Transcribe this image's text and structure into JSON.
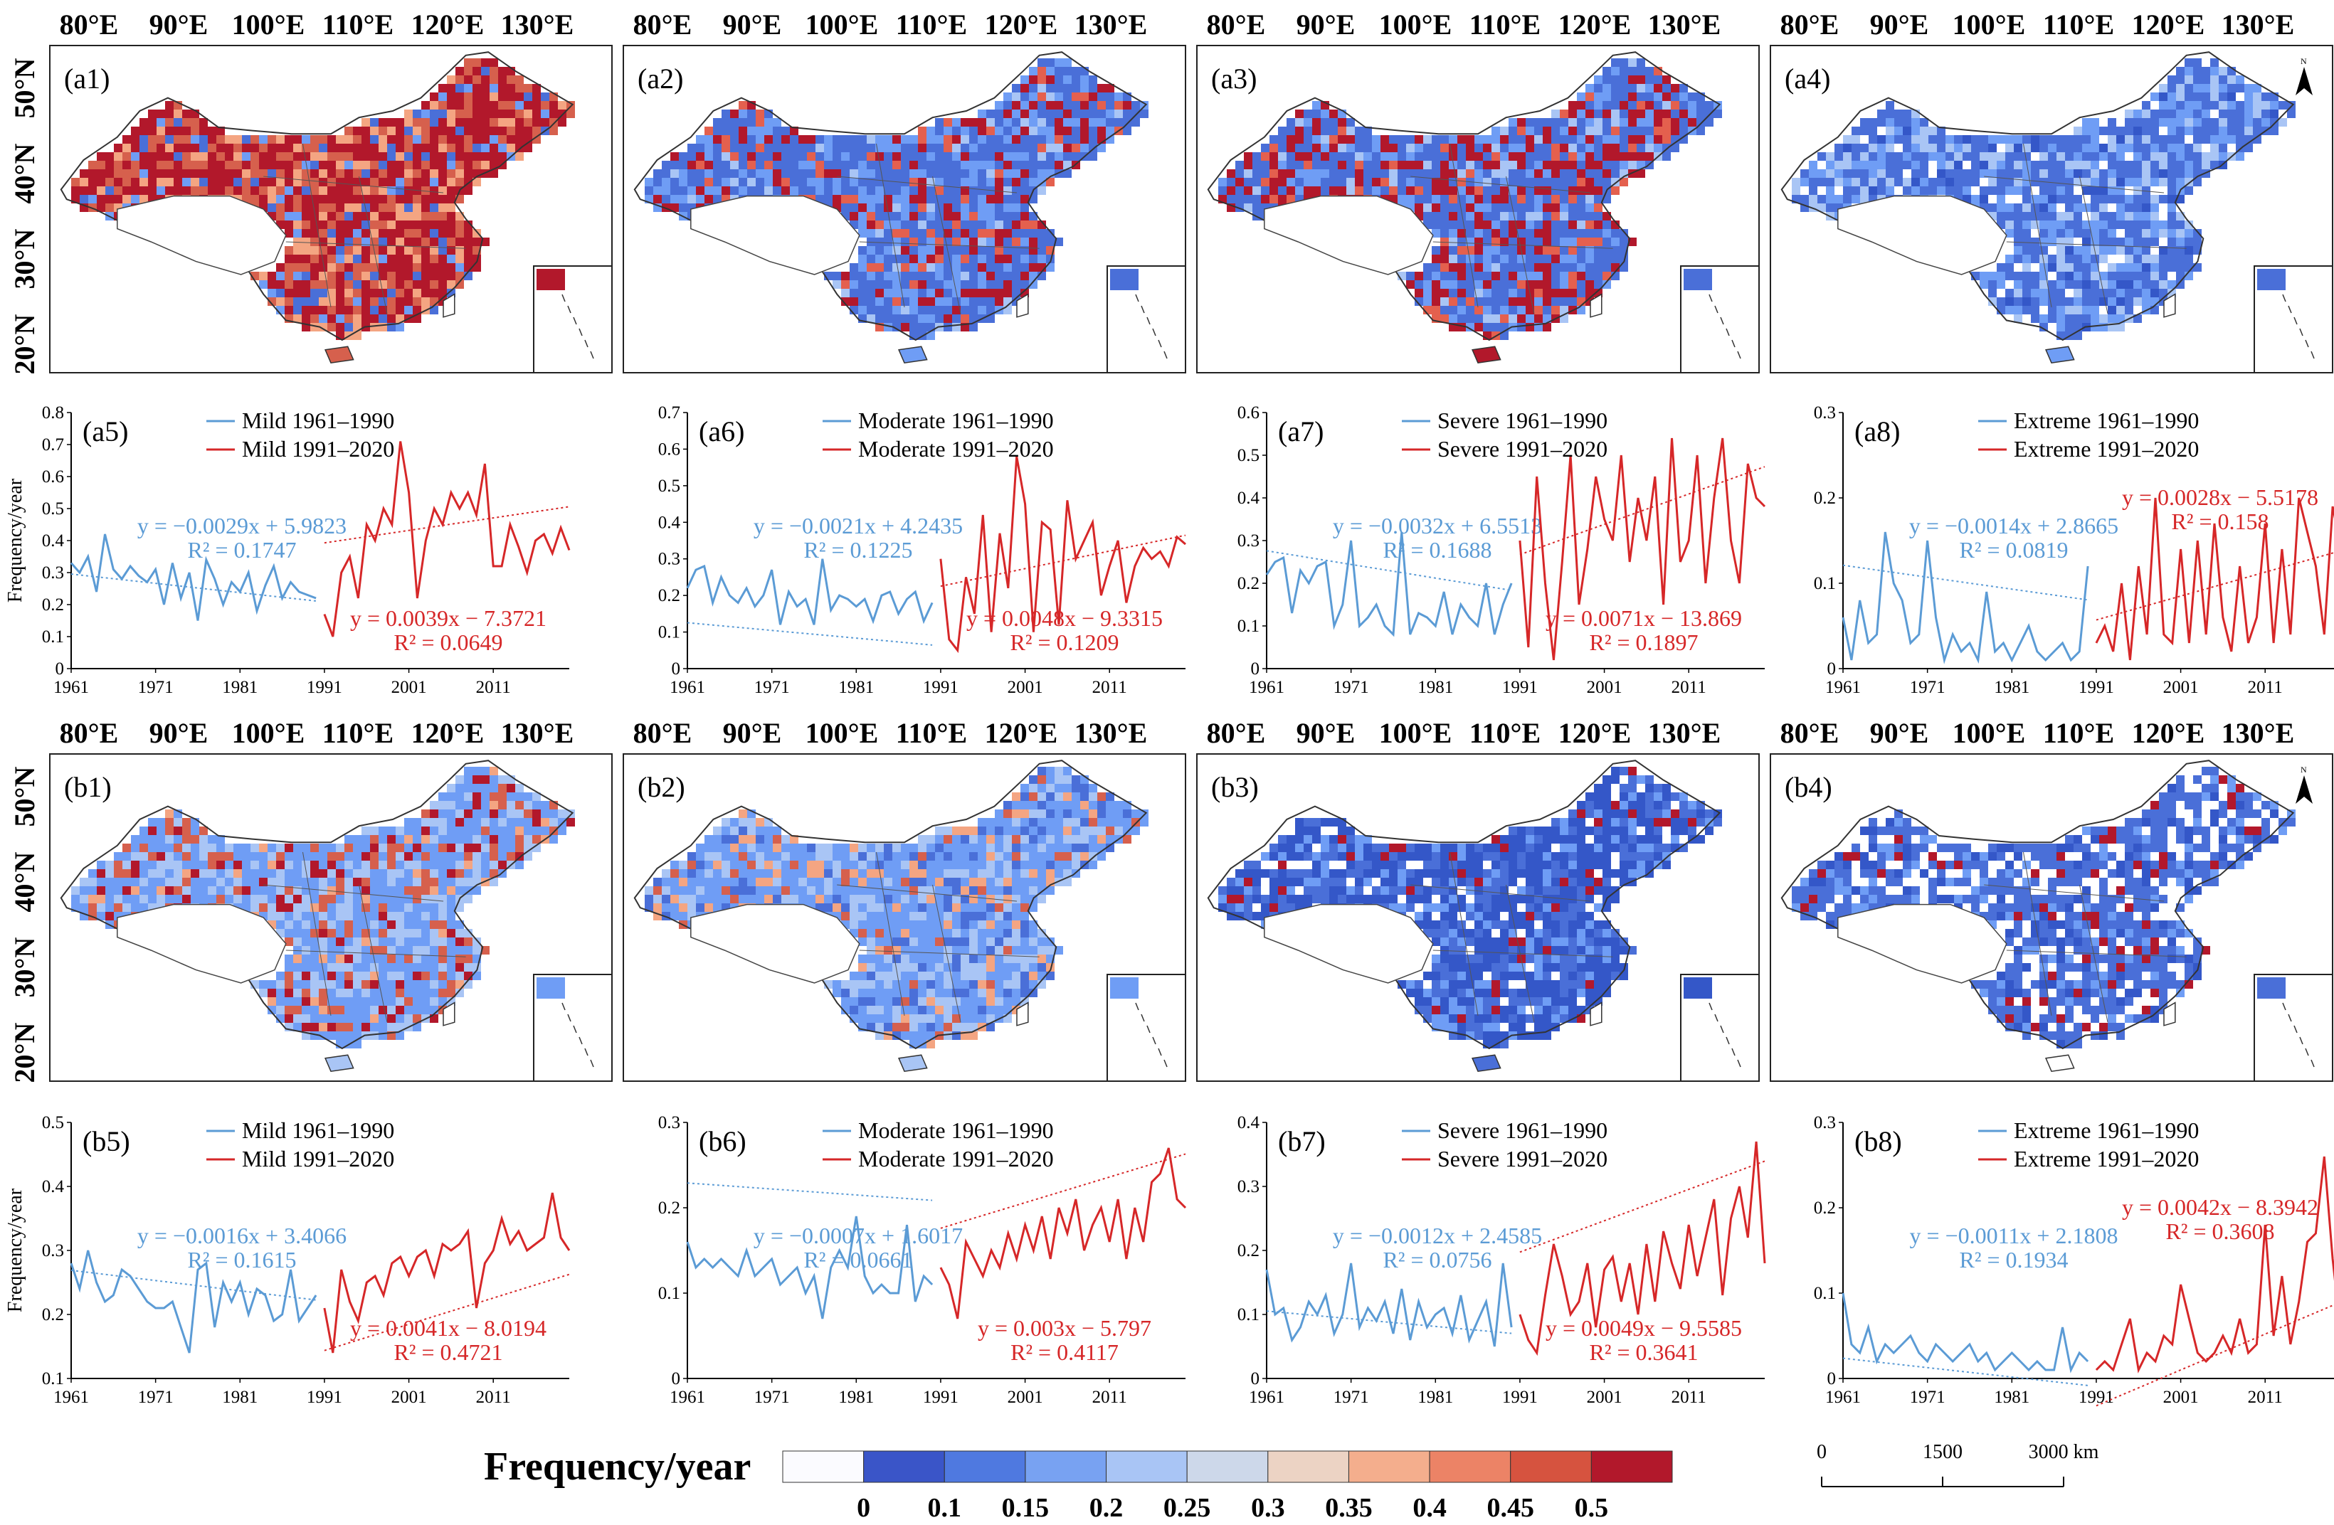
{
  "figure": {
    "lon_ticks": [
      "80°E",
      "90°E",
      "100°E",
      "110°E",
      "120°E",
      "130°E"
    ],
    "lat_ticks": [
      "50°N",
      "40°N",
      "30°N",
      "20°N"
    ],
    "north_symbol": "N"
  },
  "maps": [
    {
      "label": "(a1)",
      "level": "Mild",
      "period": "1961–1990 vs 1991–2020",
      "dominant": "high",
      "colors": [
        "#b2182b",
        "#d6604d",
        "#f4a582",
        "#4a6fd8",
        "#6f9df5"
      ]
    },
    {
      "label": "(a2)",
      "level": "Moderate",
      "period": "1961–1990 vs 1991–2020",
      "dominant": "mixed",
      "colors": [
        "#4a6fd8",
        "#6f9df5",
        "#b2182b",
        "#e4604e",
        "#a9c5f5"
      ]
    },
    {
      "label": "(a3)",
      "level": "Severe",
      "period": "1961–1990 vs 1991–2020",
      "dominant": "mixed",
      "colors": [
        "#4a6fd8",
        "#b2182b",
        "#6f9df5",
        "#e4604e",
        "#a9c5f5"
      ]
    },
    {
      "label": "(a4)",
      "level": "Extreme",
      "period": "1961–1990 vs 1991–2020",
      "dominant": "low",
      "colors": [
        "#4a6fd8",
        "#6f9df5",
        "#a9c5f5",
        "#ffffff",
        "#3457c8"
      ]
    },
    {
      "label": "(b1)",
      "level": "Mild",
      "period": "1961–1990 vs 1991–2020",
      "dominant": "mixed",
      "colors": [
        "#6f9df5",
        "#a9c5f5",
        "#d6604d",
        "#b2182b",
        "#f4a582"
      ]
    },
    {
      "label": "(b2)",
      "level": "Moderate",
      "period": "1961–1990 vs 1991–2020",
      "dominant": "low",
      "colors": [
        "#6f9df5",
        "#a9c5f5",
        "#4a6fd8",
        "#f4a582",
        "#d6604d"
      ]
    },
    {
      "label": "(b3)",
      "level": "Severe",
      "period": "1961–1990 vs 1991–2020",
      "dominant": "low",
      "colors": [
        "#3457c8",
        "#4a6fd8",
        "#6f9df5",
        "#ffffff",
        "#b2182b"
      ]
    },
    {
      "label": "(b4)",
      "level": "Extreme",
      "period": "1961–1990 vs 1991–2020",
      "dominant": "low",
      "colors": [
        "#4a6fd8",
        "#ffffff",
        "#3457c8",
        "#6f9df5",
        "#b2182b"
      ]
    }
  ],
  "chart_data": [
    {
      "type": "line",
      "label": "(a5)",
      "ylabel": "Frequency/year",
      "ylim": [
        0,
        0.8
      ],
      "yticks": [
        0,
        0.1,
        0.2,
        0.3,
        0.4,
        0.5,
        0.6,
        0.7,
        0.8
      ],
      "xlim": [
        1961,
        2020
      ],
      "xticks": [
        1961,
        1971,
        1981,
        1991,
        2001,
        2011
      ],
      "series": [
        {
          "name": "Mild 1961–1990",
          "color": "#5b9bd5",
          "x_start": 1961,
          "values": [
            0.33,
            0.3,
            0.35,
            0.24,
            0.42,
            0.31,
            0.28,
            0.32,
            0.29,
            0.27,
            0.31,
            0.2,
            0.33,
            0.22,
            0.3,
            0.15,
            0.34,
            0.28,
            0.2,
            0.27,
            0.24,
            0.3,
            0.18,
            0.26,
            0.32,
            0.22,
            0.27,
            0.24,
            0.23,
            0.22
          ],
          "trend": {
            "slope": -0.0029,
            "intercept": 5.9823
          },
          "eq": "y = −0.0029x + 5.9823",
          "r2": "R² = 0.1747"
        },
        {
          "name": "Mild 1991–2020",
          "color": "#d62728",
          "x_start": 1991,
          "values": [
            0.17,
            0.1,
            0.3,
            0.35,
            0.22,
            0.45,
            0.4,
            0.5,
            0.45,
            0.71,
            0.55,
            0.22,
            0.4,
            0.5,
            0.45,
            0.55,
            0.5,
            0.55,
            0.48,
            0.64,
            0.32,
            0.32,
            0.45,
            0.38,
            0.3,
            0.4,
            0.42,
            0.36,
            0.44,
            0.37
          ],
          "trend": {
            "slope": 0.0039,
            "intercept": -7.3721
          },
          "eq": "y = 0.0039x − 7.3721",
          "r2": "R² = 0.0649"
        }
      ]
    },
    {
      "type": "line",
      "label": "(a6)",
      "ylabel": "",
      "ylim": [
        0,
        0.7
      ],
      "yticks": [
        0,
        0.1,
        0.2,
        0.3,
        0.4,
        0.5,
        0.6,
        0.7
      ],
      "xlim": [
        1961,
        2020
      ],
      "xticks": [
        1961,
        1971,
        1981,
        1991,
        2001,
        2011
      ],
      "series": [
        {
          "name": "Moderate 1961–1990",
          "color": "#5b9bd5",
          "x_start": 1961,
          "values": [
            0.22,
            0.27,
            0.28,
            0.18,
            0.25,
            0.2,
            0.18,
            0.22,
            0.17,
            0.2,
            0.27,
            0.12,
            0.21,
            0.17,
            0.19,
            0.12,
            0.3,
            0.16,
            0.2,
            0.19,
            0.17,
            0.19,
            0.13,
            0.2,
            0.21,
            0.15,
            0.19,
            0.21,
            0.13,
            0.18
          ],
          "trend": {
            "slope": -0.0021,
            "intercept": 4.2435
          },
          "eq": "y = −0.0021x + 4.2435",
          "r2": "R² = 0.1225"
        },
        {
          "name": "Moderate 1991–2020",
          "color": "#d62728",
          "x_start": 1991,
          "values": [
            0.3,
            0.08,
            0.05,
            0.25,
            0.15,
            0.42,
            0.1,
            0.37,
            0.22,
            0.58,
            0.45,
            0.1,
            0.4,
            0.38,
            0.12,
            0.46,
            0.3,
            0.35,
            0.4,
            0.2,
            0.28,
            0.35,
            0.18,
            0.28,
            0.33,
            0.3,
            0.32,
            0.28,
            0.36,
            0.34
          ],
          "trend": {
            "slope": 0.0048,
            "intercept": -9.3315
          },
          "eq": "y = 0.0048x − 9.3315",
          "r2": "R² = 0.1209"
        }
      ]
    },
    {
      "type": "line",
      "label": "(a7)",
      "ylabel": "",
      "ylim": [
        0,
        0.6
      ],
      "yticks": [
        0,
        0.1,
        0.2,
        0.3,
        0.4,
        0.5,
        0.6
      ],
      "xlim": [
        1961,
        2020
      ],
      "xticks": [
        1961,
        1971,
        1981,
        1991,
        2001,
        2011
      ],
      "series": [
        {
          "name": "Severe 1961–1990",
          "color": "#5b9bd5",
          "x_start": 1961,
          "values": [
            0.22,
            0.25,
            0.26,
            0.13,
            0.23,
            0.2,
            0.24,
            0.25,
            0.1,
            0.15,
            0.3,
            0.1,
            0.12,
            0.15,
            0.1,
            0.08,
            0.32,
            0.08,
            0.13,
            0.12,
            0.1,
            0.18,
            0.08,
            0.15,
            0.12,
            0.1,
            0.2,
            0.08,
            0.15,
            0.2
          ],
          "trend": {
            "slope": -0.0032,
            "intercept": 6.5513
          },
          "eq": "y = −0.0032x + 6.5513",
          "r2": "R² = 0.1688"
        },
        {
          "name": "Severe 1991–2020",
          "color": "#d62728",
          "x_start": 1991,
          "values": [
            0.3,
            0.05,
            0.45,
            0.2,
            0.02,
            0.25,
            0.5,
            0.15,
            0.28,
            0.45,
            0.35,
            0.3,
            0.5,
            0.25,
            0.4,
            0.3,
            0.45,
            0.15,
            0.54,
            0.25,
            0.3,
            0.5,
            0.2,
            0.4,
            0.54,
            0.3,
            0.2,
            0.48,
            0.4,
            0.38
          ],
          "trend": {
            "slope": 0.0071,
            "intercept": -13.869
          },
          "eq": "y = 0.0071x − 13.869",
          "r2": "R² = 0.1897"
        }
      ]
    },
    {
      "type": "line",
      "label": "(a8)",
      "ylabel": "",
      "ylim": [
        0,
        0.3
      ],
      "yticks": [
        0,
        0.1,
        0.2,
        0.3
      ],
      "xlim": [
        1961,
        2020
      ],
      "xticks": [
        1961,
        1971,
        1981,
        1991,
        2001,
        2011
      ],
      "series": [
        {
          "name": "Extreme 1961–1990",
          "color": "#5b9bd5",
          "x_start": 1961,
          "values": [
            0.06,
            0.01,
            0.08,
            0.03,
            0.04,
            0.16,
            0.1,
            0.08,
            0.03,
            0.04,
            0.15,
            0.06,
            0.01,
            0.04,
            0.02,
            0.03,
            0.01,
            0.09,
            0.02,
            0.03,
            0.01,
            0.03,
            0.05,
            0.02,
            0.01,
            0.02,
            0.03,
            0.01,
            0.02,
            0.12
          ],
          "trend": {
            "slope": -0.0014,
            "intercept": 2.8665
          },
          "eq": "y = −0.0014x + 2.8665",
          "r2": "R² = 0.0819"
        },
        {
          "name": "Extreme 1991–2020",
          "color": "#d62728",
          "x_start": 1991,
          "values": [
            0.03,
            0.05,
            0.02,
            0.1,
            0.01,
            0.12,
            0.04,
            0.2,
            0.04,
            0.03,
            0.14,
            0.03,
            0.15,
            0.04,
            0.17,
            0.06,
            0.02,
            0.12,
            0.03,
            0.06,
            0.17,
            0.03,
            0.14,
            0.04,
            0.2,
            0.16,
            0.12,
            0.04,
            0.19,
            0.14
          ],
          "trend": {
            "slope": 0.0028,
            "intercept": -5.5178
          },
          "eq": "y = 0.0028x − 5.5178",
          "r2": "R² = 0.158"
        }
      ]
    },
    {
      "type": "line",
      "label": "(b5)",
      "ylabel": "Frequency/year",
      "ylim": [
        0.1,
        0.5
      ],
      "yticks": [
        0.1,
        0.2,
        0.3,
        0.4,
        0.5
      ],
      "xlim": [
        1961,
        2020
      ],
      "xticks": [
        1961,
        1971,
        1981,
        1991,
        2001,
        2011
      ],
      "series": [
        {
          "name": "Mild 1961–1990",
          "color": "#5b9bd5",
          "x_start": 1961,
          "values": [
            0.28,
            0.24,
            0.3,
            0.25,
            0.22,
            0.23,
            0.27,
            0.26,
            0.24,
            0.22,
            0.21,
            0.21,
            0.22,
            0.18,
            0.14,
            0.27,
            0.28,
            0.18,
            0.25,
            0.22,
            0.25,
            0.2,
            0.24,
            0.23,
            0.19,
            0.2,
            0.27,
            0.19,
            0.21,
            0.23
          ],
          "trend": {
            "slope": -0.0016,
            "intercept": 3.4066
          },
          "eq": "y = −0.0016x + 3.4066",
          "r2": "R² = 0.1615"
        },
        {
          "name": "Mild 1991–2020",
          "color": "#d62728",
          "x_start": 1991,
          "values": [
            0.21,
            0.14,
            0.27,
            0.22,
            0.19,
            0.25,
            0.26,
            0.23,
            0.28,
            0.29,
            0.26,
            0.29,
            0.3,
            0.26,
            0.31,
            0.3,
            0.31,
            0.33,
            0.21,
            0.28,
            0.3,
            0.35,
            0.31,
            0.33,
            0.3,
            0.31,
            0.32,
            0.39,
            0.32,
            0.3
          ],
          "trend": {
            "slope": 0.0041,
            "intercept": -8.0194
          },
          "eq": "y = 0.0041x − 8.0194",
          "r2": "R² = 0.4721"
        }
      ]
    },
    {
      "type": "line",
      "label": "(b6)",
      "ylabel": "",
      "ylim": [
        0,
        0.3
      ],
      "yticks": [
        0,
        0.1,
        0.2,
        0.3
      ],
      "xlim": [
        1961,
        2020
      ],
      "xticks": [
        1961,
        1971,
        1981,
        1991,
        2001,
        2011
      ],
      "series": [
        {
          "name": "Moderate 1961–1990",
          "color": "#5b9bd5",
          "x_start": 1961,
          "values": [
            0.16,
            0.13,
            0.14,
            0.13,
            0.14,
            0.13,
            0.12,
            0.15,
            0.12,
            0.13,
            0.14,
            0.11,
            0.12,
            0.13,
            0.1,
            0.12,
            0.07,
            0.13,
            0.15,
            0.13,
            0.19,
            0.12,
            0.1,
            0.11,
            0.1,
            0.1,
            0.18,
            0.09,
            0.12,
            0.11
          ],
          "trend": {
            "slope": -0.0007,
            "intercept": 1.6017
          },
          "eq": "y = −0.0007x + 1.6017",
          "r2": "R² = 0.0661"
        },
        {
          "name": "Moderate 1991–2020",
          "color": "#d62728",
          "x_start": 1991,
          "values": [
            0.13,
            0.11,
            0.07,
            0.16,
            0.14,
            0.12,
            0.15,
            0.13,
            0.17,
            0.14,
            0.18,
            0.15,
            0.19,
            0.14,
            0.2,
            0.17,
            0.21,
            0.15,
            0.18,
            0.2,
            0.16,
            0.21,
            0.14,
            0.2,
            0.16,
            0.23,
            0.24,
            0.27,
            0.21,
            0.2
          ],
          "trend": {
            "slope": 0.003,
            "intercept": -5.797
          },
          "eq": "y = 0.003x − 5.797",
          "r2": "R² = 0.4117"
        }
      ]
    },
    {
      "type": "line",
      "label": "(b7)",
      "ylabel": "",
      "ylim": [
        0,
        0.4
      ],
      "yticks": [
        0,
        0.1,
        0.2,
        0.3,
        0.4
      ],
      "xlim": [
        1961,
        2020
      ],
      "xticks": [
        1961,
        1971,
        1981,
        1991,
        2001,
        2011
      ],
      "series": [
        {
          "name": "Severe 1961–1990",
          "color": "#5b9bd5",
          "x_start": 1961,
          "values": [
            0.17,
            0.1,
            0.11,
            0.06,
            0.08,
            0.12,
            0.1,
            0.13,
            0.07,
            0.1,
            0.18,
            0.08,
            0.11,
            0.09,
            0.12,
            0.07,
            0.14,
            0.06,
            0.12,
            0.08,
            0.1,
            0.11,
            0.07,
            0.13,
            0.06,
            0.09,
            0.12,
            0.05,
            0.18,
            0.08
          ],
          "trend": {
            "slope": -0.0012,
            "intercept": 2.4585
          },
          "eq": "y = −0.0012x + 2.4585",
          "r2": "R² = 0.0756"
        },
        {
          "name": "Severe 1991–2020",
          "color": "#d62728",
          "x_start": 1991,
          "values": [
            0.1,
            0.06,
            0.04,
            0.13,
            0.21,
            0.16,
            0.1,
            0.12,
            0.18,
            0.08,
            0.17,
            0.19,
            0.12,
            0.18,
            0.1,
            0.21,
            0.12,
            0.23,
            0.18,
            0.14,
            0.24,
            0.16,
            0.22,
            0.28,
            0.13,
            0.25,
            0.3,
            0.22,
            0.37,
            0.18
          ],
          "trend": {
            "slope": 0.0049,
            "intercept": -9.5585
          },
          "eq": "y = 0.0049x − 9.5585",
          "r2": "R² = 0.3641"
        }
      ]
    },
    {
      "type": "line",
      "label": "(b8)",
      "ylabel": "",
      "ylim": [
        0,
        0.3
      ],
      "yticks": [
        0,
        0.1,
        0.2,
        0.3
      ],
      "xlim": [
        1961,
        2020
      ],
      "xticks": [
        1961,
        1971,
        1981,
        1991,
        2001,
        2011
      ],
      "series": [
        {
          "name": "Extreme 1961–1990",
          "color": "#5b9bd5",
          "x_start": 1961,
          "values": [
            0.1,
            0.04,
            0.03,
            0.06,
            0.02,
            0.04,
            0.03,
            0.04,
            0.05,
            0.03,
            0.02,
            0.04,
            0.03,
            0.02,
            0.03,
            0.04,
            0.02,
            0.03,
            0.01,
            0.02,
            0.03,
            0.02,
            0.01,
            0.02,
            0.01,
            0.01,
            0.06,
            0.01,
            0.03,
            0.02
          ],
          "trend": {
            "slope": -0.0011,
            "intercept": 2.1808
          },
          "eq": "y = −0.0011x + 2.1808",
          "r2": "R² = 0.1934"
        },
        {
          "name": "Extreme 1991–2020",
          "color": "#d62728",
          "x_start": 1991,
          "values": [
            0.01,
            0.02,
            0.01,
            0.04,
            0.07,
            0.01,
            0.03,
            0.02,
            0.05,
            0.04,
            0.11,
            0.07,
            0.03,
            0.02,
            0.03,
            0.05,
            0.03,
            0.07,
            0.03,
            0.04,
            0.18,
            0.05,
            0.12,
            0.04,
            0.09,
            0.16,
            0.17,
            0.26,
            0.14,
            0.05
          ],
          "trend": {
            "slope": 0.0042,
            "intercept": -8.3942
          },
          "eq": "y = 0.0042x − 8.3942",
          "r2": "R² = 0.3608"
        }
      ]
    }
  ],
  "colorbar": {
    "title": "Frequency/year",
    "ticks": [
      "0",
      "0.1",
      "0.15",
      "0.2",
      "0.25",
      "0.3",
      "0.35",
      "0.4",
      "0.45",
      "0.5"
    ],
    "colors": [
      "#fbfbff",
      "#3a55c8",
      "#4f79e0",
      "#78a2f2",
      "#a9c5f5",
      "#cdd8ea",
      "#ecd3c4",
      "#f4ae8d",
      "#ec8366",
      "#d6533f",
      "#b2182b"
    ]
  },
  "scalebar": {
    "labels": [
      "0",
      "1500",
      "3000 km"
    ]
  }
}
